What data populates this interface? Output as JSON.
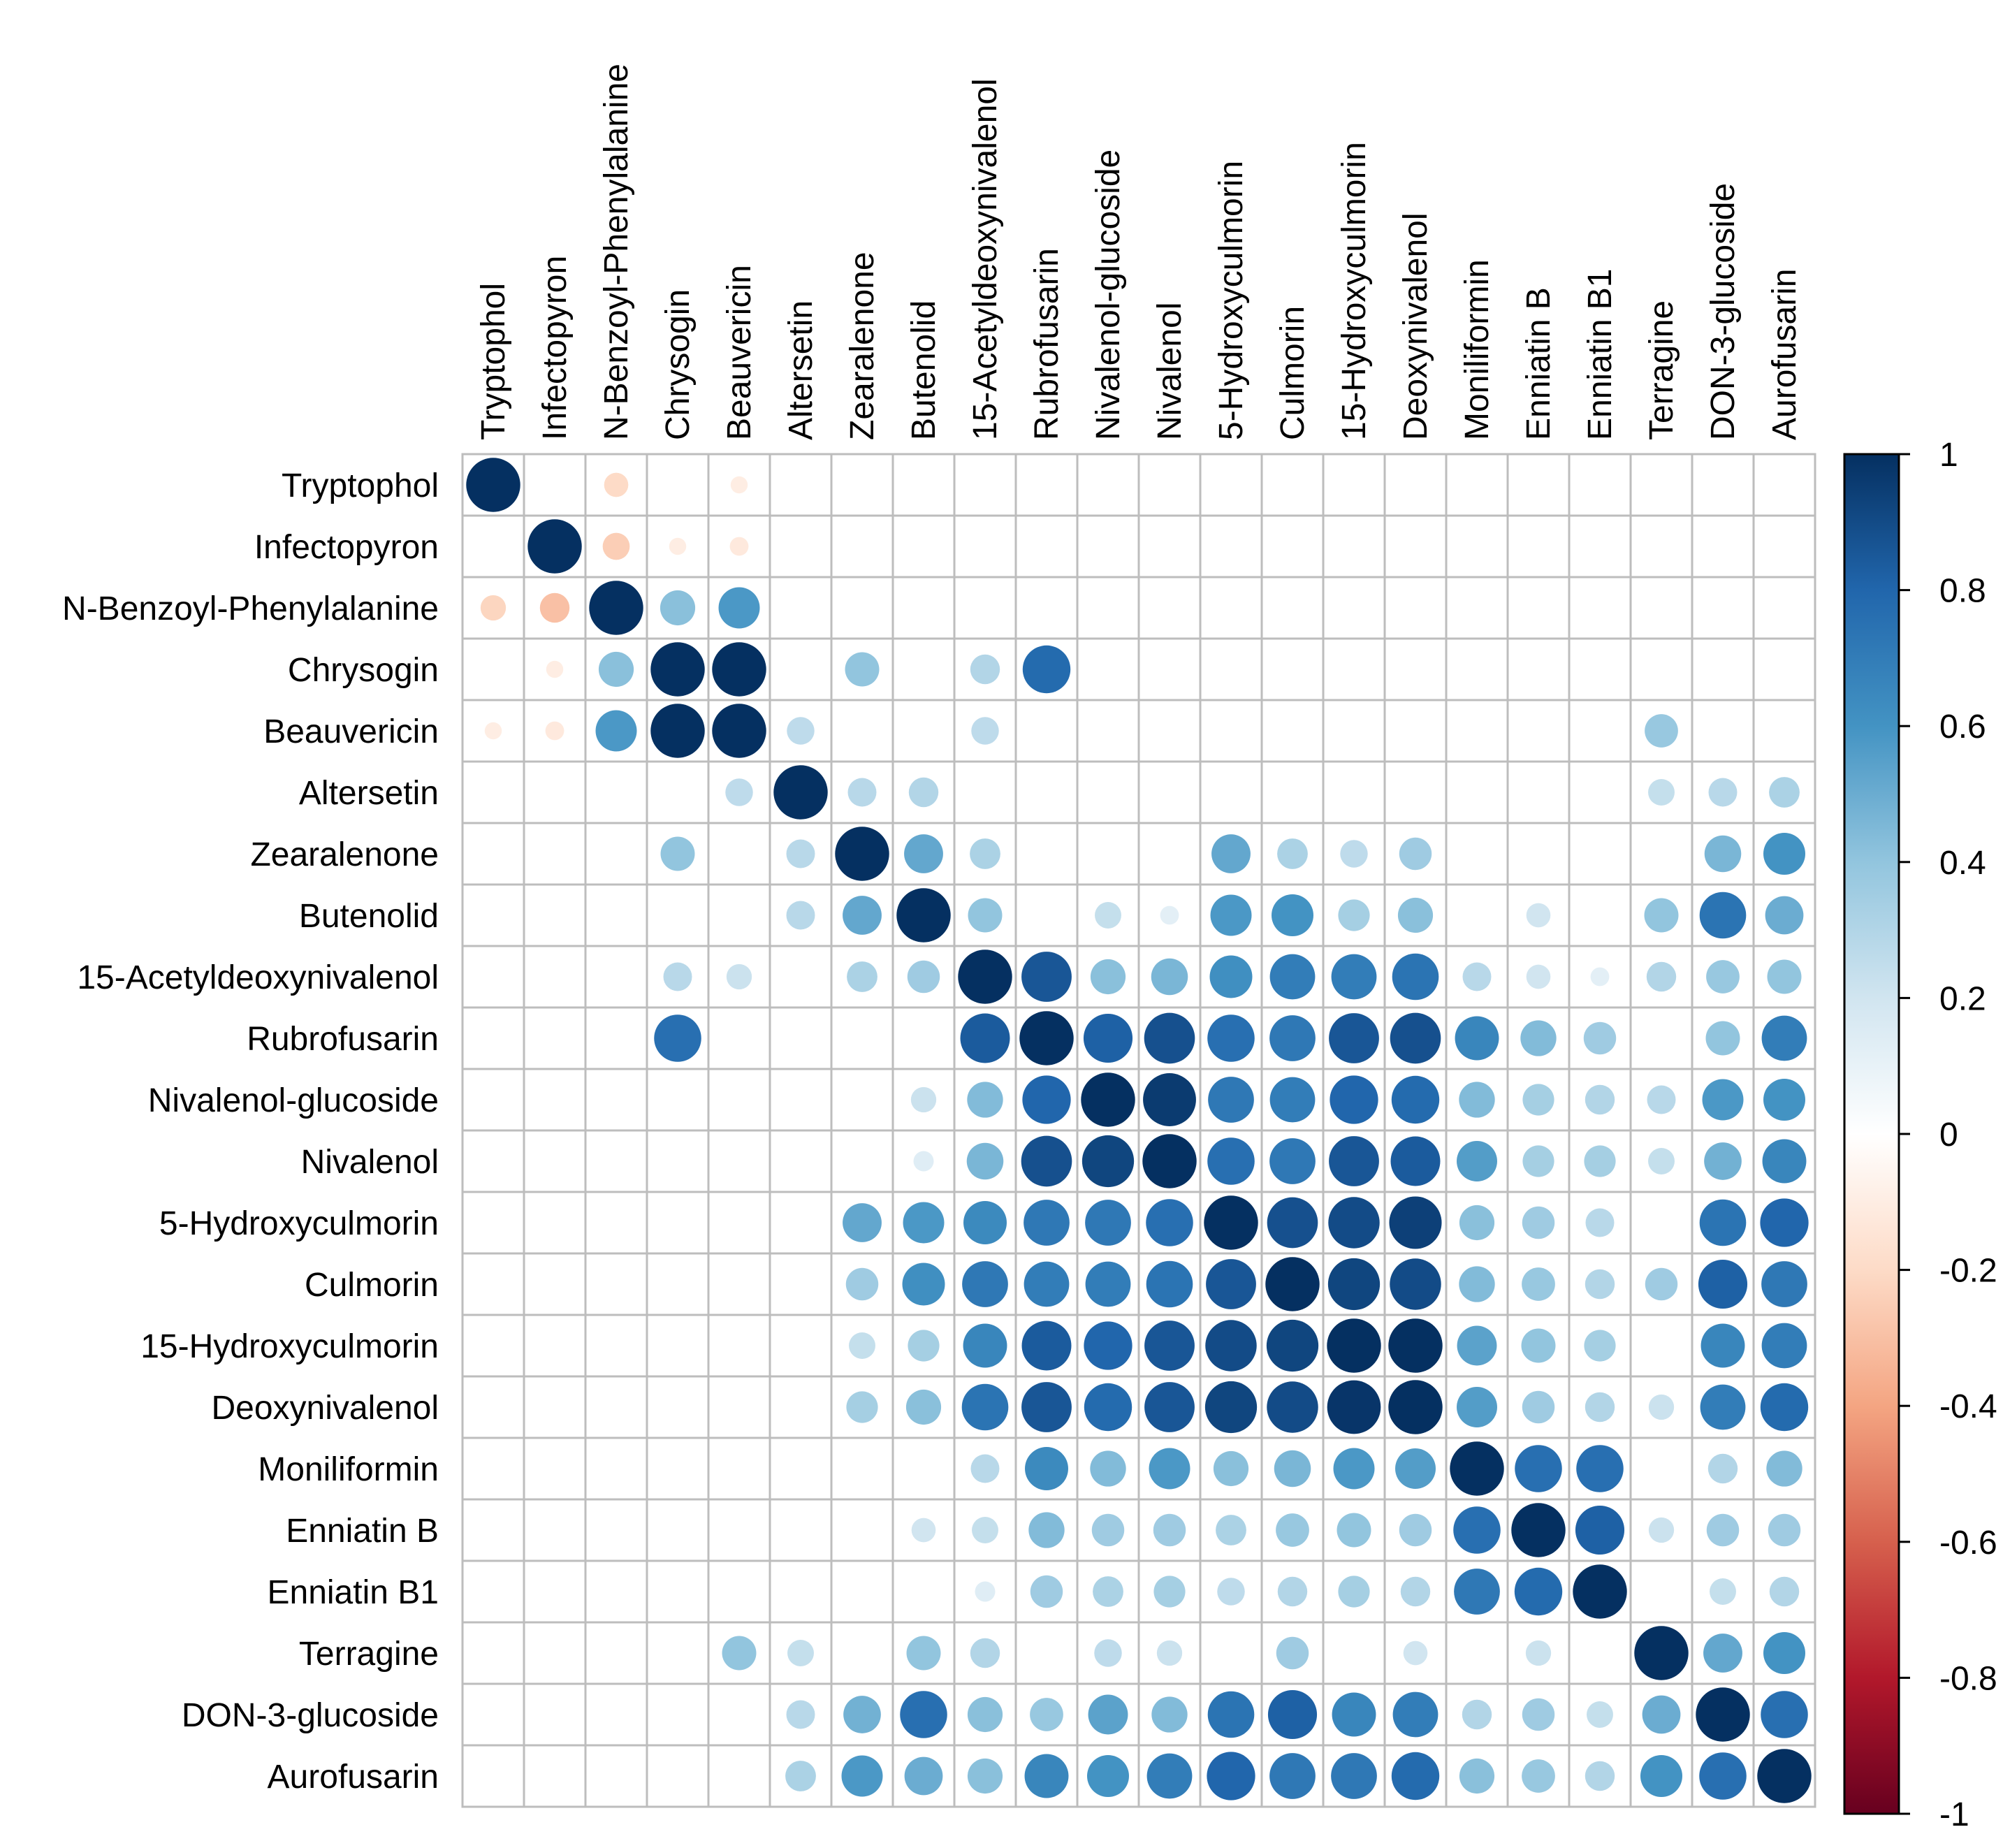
{
  "chart_data": {
    "type": "heatmap",
    "title": "",
    "labels": [
      "Tryptophol",
      "Infectopyron",
      "N-Benzoyl-Phenylalanine",
      "Chrysogin",
      "Beauvericin",
      "Altersetin",
      "Zearalenone",
      "Butenolid",
      "15-Acetyldeoxynivalenol",
      "Rubrofusarin",
      "Nivalenol-glucoside",
      "Nivalenol",
      "5-Hydroxyculmorin",
      "Culmorin",
      "15-Hydroxyculmorin",
      "Deoxynivalenol",
      "Moniliformin",
      "Enniatin B",
      "Enniatin B1",
      "Terragine",
      "DON-3-glucoside",
      "Aurofusarin"
    ],
    "matrix": [
      [
        1,
        0,
        -0.2,
        0,
        -0.1,
        0,
        0,
        0,
        0,
        0,
        0,
        0,
        0,
        0,
        0,
        0,
        0,
        0,
        0,
        0,
        0,
        0
      ],
      [
        0,
        1,
        -0.25,
        -0.1,
        -0.12,
        0,
        0,
        0,
        0,
        0,
        0,
        0,
        0,
        0,
        0,
        0,
        0,
        0,
        0,
        0,
        0,
        0
      ],
      [
        -0.22,
        -0.3,
        1,
        0.42,
        0.58,
        0,
        0,
        0,
        0,
        0,
        0,
        0,
        0,
        0,
        0,
        0,
        0,
        0,
        0,
        0,
        0,
        0
      ],
      [
        0,
        -0.1,
        0.42,
        1,
        1,
        0,
        0.4,
        0,
        0.3,
        0.78,
        0,
        0,
        0,
        0,
        0,
        0,
        0,
        0,
        0,
        0,
        0,
        0
      ],
      [
        -0.1,
        -0.12,
        0.58,
        1,
        1,
        0.26,
        0,
        0,
        0.26,
        0,
        0,
        0,
        0,
        0,
        0,
        0,
        0,
        0,
        0,
        0.38,
        0,
        0
      ],
      [
        0,
        0,
        0,
        0,
        0.26,
        1,
        0.28,
        0.3,
        0,
        0,
        0,
        0,
        0,
        0,
        0,
        0,
        0,
        0,
        0,
        0.24,
        0.28,
        0.32
      ],
      [
        0,
        0,
        0,
        0.4,
        0,
        0.28,
        1,
        0.52,
        0.32,
        0,
        0,
        0,
        0.52,
        0.32,
        0.26,
        0.36,
        0,
        0,
        0,
        0,
        0.46,
        0.6
      ],
      [
        0,
        0,
        0,
        0,
        0,
        0.28,
        0.52,
        1,
        0.4,
        0,
        0.24,
        0.12,
        0.58,
        0.6,
        0.34,
        0.42,
        0,
        0.2,
        0,
        0.4,
        0.74,
        0.5
      ],
      [
        0,
        0,
        0,
        0.28,
        0.22,
        0,
        0.32,
        0.36,
        1,
        0.86,
        0.42,
        0.46,
        0.62,
        0.7,
        0.7,
        0.74,
        0.28,
        0.2,
        0.12,
        0.3,
        0.38,
        0.4
      ],
      [
        0,
        0,
        0,
        0.76,
        0,
        0,
        0,
        0,
        0.84,
        1,
        0.82,
        0.88,
        0.76,
        0.72,
        0.86,
        0.88,
        0.66,
        0.44,
        0.36,
        0,
        0.4,
        0.7
      ],
      [
        0,
        0,
        0,
        0,
        0,
        0,
        0,
        0.22,
        0.44,
        0.8,
        1,
        0.96,
        0.72,
        0.7,
        0.8,
        0.78,
        0.44,
        0.34,
        0.3,
        0.28,
        0.58,
        0.6
      ],
      [
        0,
        0,
        0,
        0,
        0,
        0,
        0,
        0.14,
        0.46,
        0.88,
        0.92,
        1,
        0.76,
        0.72,
        0.86,
        0.84,
        0.56,
        0.34,
        0.34,
        0.24,
        0.48,
        0.66
      ],
      [
        0,
        0,
        0,
        0,
        0,
        0,
        0.52,
        0.58,
        0.64,
        0.72,
        0.72,
        0.76,
        1,
        0.88,
        0.9,
        0.94,
        0.42,
        0.36,
        0.28,
        0,
        0.74,
        0.8
      ],
      [
        0,
        0,
        0,
        0,
        0,
        0,
        0.36,
        0.62,
        0.72,
        0.7,
        0.7,
        0.74,
        0.86,
        1,
        0.92,
        0.9,
        0.44,
        0.38,
        0.3,
        0.36,
        0.82,
        0.72
      ],
      [
        0,
        0,
        0,
        0,
        0,
        0,
        0.24,
        0.34,
        0.66,
        0.84,
        0.8,
        0.86,
        0.9,
        0.92,
        1,
        1,
        0.54,
        0.4,
        0.34,
        0,
        0.66,
        0.7
      ],
      [
        0,
        0,
        0,
        0,
        0,
        0,
        0.34,
        0.42,
        0.74,
        0.86,
        0.78,
        0.86,
        0.92,
        0.9,
        0.98,
        1,
        0.56,
        0.36,
        0.3,
        0.22,
        0.7,
        0.78
      ],
      [
        0,
        0,
        0,
        0,
        0,
        0,
        0,
        0,
        0.28,
        0.64,
        0.44,
        0.58,
        0.42,
        0.46,
        0.58,
        0.56,
        1,
        0.76,
        0.76,
        0,
        0.3,
        0.44
      ],
      [
        0,
        0,
        0,
        0,
        0,
        0,
        0,
        0.2,
        0.24,
        0.44,
        0.36,
        0.36,
        0.32,
        0.38,
        0.4,
        0.36,
        0.76,
        1,
        0.82,
        0.22,
        0.36,
        0.36
      ],
      [
        0,
        0,
        0,
        0,
        0,
        0,
        0,
        0,
        0.14,
        0.36,
        0.32,
        0.34,
        0.26,
        0.3,
        0.34,
        0.3,
        0.72,
        0.78,
        1,
        0,
        0.24,
        0.3
      ],
      [
        0,
        0,
        0,
        0,
        0.4,
        0.24,
        0,
        0.4,
        0.3,
        0,
        0.26,
        0.22,
        0,
        0.36,
        0,
        0.2,
        0,
        0.22,
        0,
        1,
        0.52,
        0.6
      ],
      [
        0,
        0,
        0,
        0,
        0,
        0.28,
        0.48,
        0.76,
        0.42,
        0.38,
        0.54,
        0.44,
        0.74,
        0.82,
        0.66,
        0.7,
        0.3,
        0.36,
        0.24,
        0.5,
        1,
        0.76
      ],
      [
        0,
        0,
        0,
        0,
        0,
        0.32,
        0.58,
        0.5,
        0.42,
        0.66,
        0.6,
        0.7,
        0.8,
        0.72,
        0.72,
        0.78,
        0.42,
        0.38,
        0.3,
        0.6,
        0.76,
        1
      ]
    ],
    "colorbar": {
      "range": [
        -1,
        1
      ],
      "tick_labels": [
        "1",
        "0.8",
        "0.6",
        "0.4",
        "0.2",
        "0",
        "-0.2",
        "-0.4",
        "-0.6",
        "-0.8",
        "-1"
      ],
      "tick_values": [
        1,
        0.8,
        0.6,
        0.4,
        0.2,
        0,
        -0.2,
        -0.4,
        -0.6,
        -0.8,
        -1
      ]
    },
    "colors": {
      "neg_1": "#67001f",
      "neg_08": "#b2182b",
      "neg_06": "#d6604d",
      "neg_04": "#f4a582",
      "neg_02": "#fddbc7",
      "zero": "#ffffff",
      "pos_02": "#d1e5f0",
      "pos_04": "#92c5de",
      "pos_06": "#4393c3",
      "pos_08": "#2166ac",
      "pos_1": "#053061",
      "grid": "#bdbdbd"
    }
  }
}
